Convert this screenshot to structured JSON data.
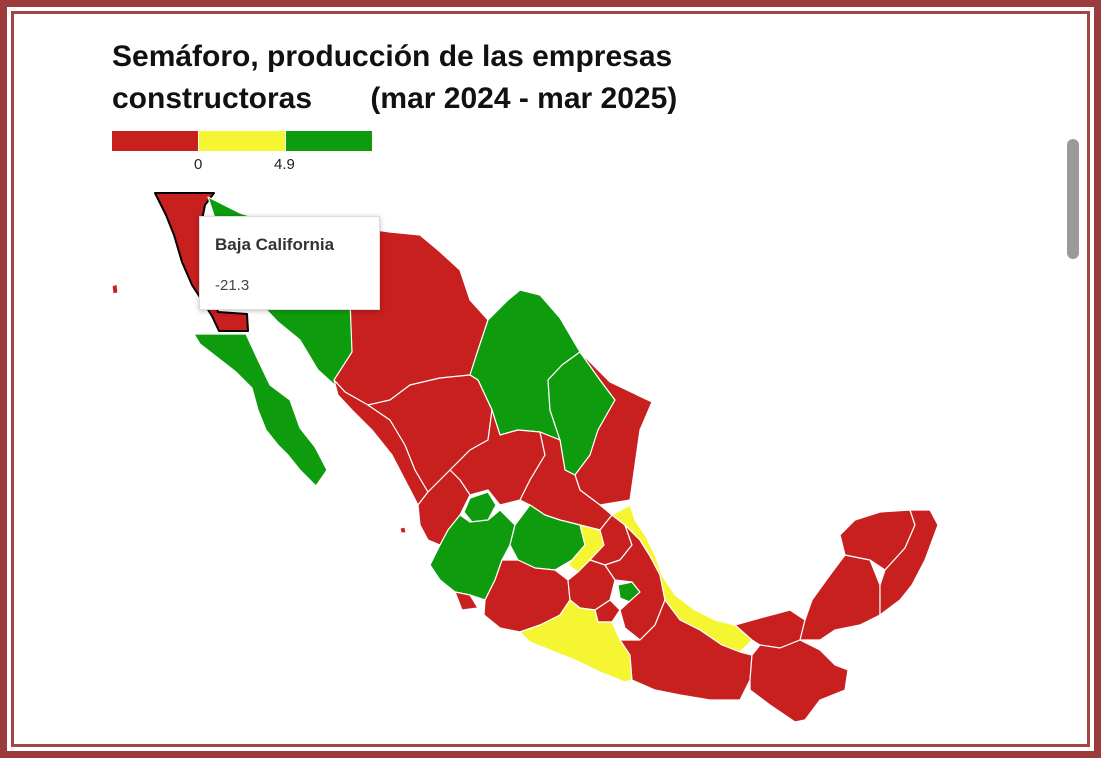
{
  "title": {
    "line1": "Semáforo, producción de las empresas",
    "line2_left": "constructoras",
    "line2_right": "(mar 2024 - mar 2025)"
  },
  "legend": {
    "thresholds": [
      "0",
      "4.9"
    ],
    "colors": [
      "#c81f1f",
      "#f5f532",
      "#0e9c0e"
    ]
  },
  "tooltip": {
    "name": "Baja California",
    "value": "-21.3"
  },
  "colors": {
    "red": "#c81f1f",
    "yellow": "#f5f532",
    "green": "#0e9c0e",
    "frame": "#9c3b3b"
  }
}
